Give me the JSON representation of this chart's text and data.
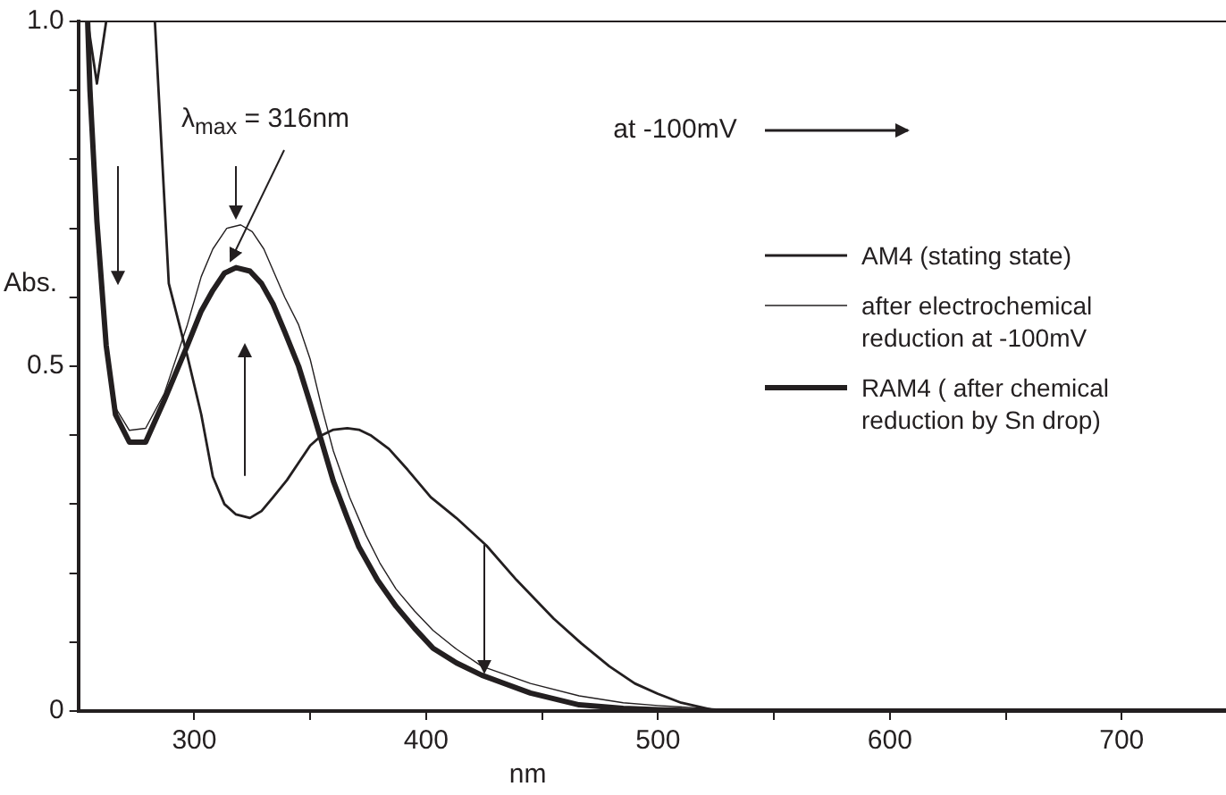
{
  "chart_data": {
    "type": "line",
    "xlabel": "nm",
    "ylabel": "Abs.",
    "annotations": [
      {
        "text": "λ$_{max}$ = 316nm",
        "x": 316,
        "y": 0.643
      },
      "at -100mV"
    ],
    "xlim": [
      250,
      745
    ],
    "xticks": [
      300,
      {
        "value": 350,
        "label": null
      },
      400,
      {
        "value": 450,
        "label": null
      },
      500,
      {
        "value": 550,
        "label": null
      },
      600,
      {
        "value": 650,
        "label": null
      },
      700
    ],
    "ylim": [
      0,
      1
    ],
    "yticks": [
      0,
      {
        "value": 0.1,
        "label": null
      },
      {
        "value": 0.2,
        "label": null
      },
      {
        "value": 0.3,
        "label": null
      },
      {
        "value": 0.4,
        "label": null
      },
      0.5,
      {
        "value": 0.6,
        "label": null
      },
      {
        "value": 0.7,
        "label": null
      },
      {
        "value": 0.8,
        "label": null
      },
      {
        "value": 0.9,
        "label": null
      },
      {
        "value": 1,
        "label": "1.0"
      }
    ],
    "grid": false,
    "legend": "right",
    "line_style": "solid",
    "marker": "none",
    "series": [
      {
        "name": "AM4 (stating state)",
        "color": "#231f20",
        "x": [
          254,
          258,
          262,
          263,
          283,
          289,
          297,
          303,
          308,
          313,
          318,
          324,
          329,
          334,
          340,
          345,
          350,
          355,
          360,
          366,
          371,
          376,
          384,
          392,
          402,
          413,
          426,
          439,
          455,
          467,
          479,
          490,
          500,
          510,
          526,
          560,
          600,
          650,
          700,
          745
        ],
        "values": [
          1.0,
          0.91,
          1.0,
          null,
          1.0,
          0.62,
          0.515,
          0.43,
          0.34,
          0.3,
          0.285,
          0.28,
          0.29,
          0.31,
          0.335,
          0.36,
          0.385,
          0.4,
          0.408,
          0.41,
          0.408,
          0.4,
          0.38,
          0.35,
          0.31,
          0.28,
          0.24,
          0.19,
          0.134,
          0.098,
          0.065,
          0.04,
          0.025,
          0.012,
          0.0,
          0.0,
          0.0,
          0.0,
          0.0,
          0.0
        ]
      },
      {
        "name": "after electrochemical reduction at -100mV",
        "color": "#231f20",
        "x": [
          254,
          256,
          258,
          262,
          266,
          272,
          279,
          287,
          297,
          303,
          308,
          314,
          320,
          325,
          330,
          339,
          345,
          350,
          355,
          360,
          367,
          374,
          380,
          387,
          395,
          403,
          413,
          424,
          445,
          466,
          485,
          500,
          520,
          540,
          600,
          650,
          700,
          745
        ],
        "values": [
          1.0,
          0.88,
          0.71,
          0.53,
          0.44,
          0.407,
          0.41,
          0.46,
          0.56,
          0.63,
          0.67,
          0.7,
          0.705,
          0.695,
          0.67,
          0.6,
          0.56,
          0.51,
          0.44,
          0.377,
          0.31,
          0.255,
          0.215,
          0.177,
          0.145,
          0.117,
          0.09,
          0.065,
          0.04,
          0.022,
          0.012,
          0.008,
          0.004,
          0.0,
          0.0,
          0.0,
          0.0,
          0.0
        ]
      },
      {
        "name": "RAM4 ( after chemical reduction by Sn drop)",
        "color": "#231f20",
        "x": [
          254,
          255,
          258,
          262,
          266,
          272,
          279,
          287,
          297,
          303,
          308,
          313,
          318,
          324,
          329,
          334,
          339,
          345,
          350,
          355,
          360,
          366,
          371,
          379,
          387,
          395,
          403,
          413,
          424,
          445,
          466,
          485,
          500,
          520,
          545,
          600,
          650,
          700,
          745
        ],
        "values": [
          1.0,
          0.9,
          0.71,
          0.53,
          0.43,
          0.39,
          0.39,
          0.45,
          0.53,
          0.58,
          0.61,
          0.635,
          0.643,
          0.638,
          0.62,
          0.59,
          0.55,
          0.5,
          0.446,
          0.39,
          0.333,
          0.28,
          0.238,
          0.19,
          0.152,
          0.12,
          0.091,
          0.07,
          0.052,
          0.026,
          0.009,
          0.004,
          0.002,
          0.0,
          0.0,
          0.0,
          0.0,
          0.0,
          0.0
        ]
      }
    ]
  }
}
